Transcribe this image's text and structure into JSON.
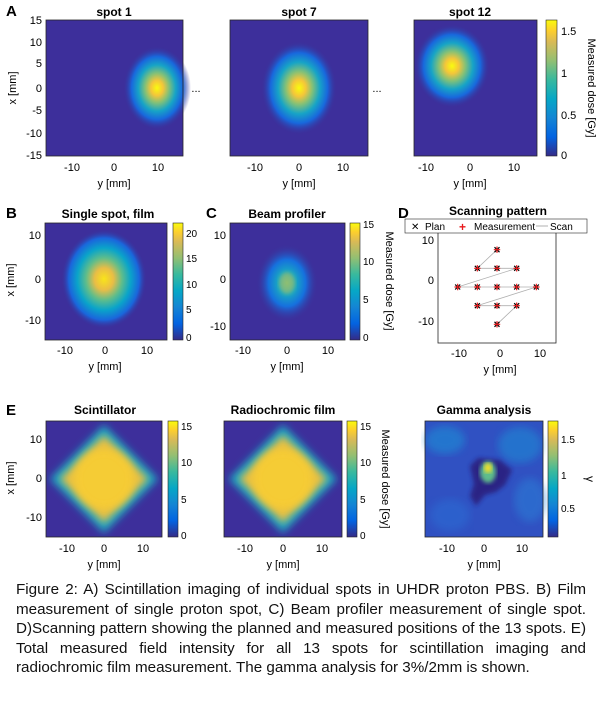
{
  "panel_letters": [
    "A",
    "B",
    "C",
    "D",
    "E"
  ],
  "colors": {
    "parula_stops": [
      "#352a87",
      "#0363e1",
      "#1485d4",
      "#06a7c6",
      "#38b99e",
      "#92bf73",
      "#d9ba56",
      "#fcce2e",
      "#f9fb0e"
    ],
    "plan_marker": "#000000",
    "measurement_marker": "#e8191c",
    "scan_line": "#b0b0b0"
  },
  "panels": {
    "A": {
      "spot1_title": "spot 1",
      "spot7_title": "spot 7",
      "spot12_title": "spot 12",
      "ellipsis": "...",
      "xlabel": "y [mm]",
      "ylabel": "x [mm]",
      "colorbar_label": "Measured dose [Gy]",
      "colorbar_ticks": [
        "1.5",
        "1",
        "0.5",
        "0"
      ],
      "y_ticks": [
        "15",
        "10",
        "5",
        "0",
        "-5",
        "-10",
        "-15"
      ],
      "x_ticks": [
        "-10",
        "0",
        "10"
      ]
    },
    "B": {
      "title": "Single spot, film",
      "xlabel": "y [mm]",
      "ylabel": "x [mm]",
      "y_ticks": [
        "10",
        "0",
        "-10"
      ],
      "x_ticks": [
        "-10",
        "0",
        "10"
      ],
      "colorbar_ticks": [
        "20",
        "15",
        "10",
        "5",
        "0"
      ]
    },
    "C": {
      "title": "Beam profiler",
      "xlabel": "y [mm]",
      "y_ticks": [
        "10",
        "0",
        "-10"
      ],
      "x_ticks": [
        "-10",
        "0",
        "10"
      ],
      "colorbar_label": "Measured dose [Gy]",
      "colorbar_ticks": [
        "15",
        "10",
        "5",
        "0"
      ]
    },
    "D": {
      "title": "Scanning pattern",
      "xlabel": "y [mm]",
      "y_ticks": [
        "10",
        "0",
        "-10"
      ],
      "x_ticks": [
        "-10",
        "0",
        "10"
      ],
      "legend": [
        "Plan",
        "Measurement",
        "Scan"
      ]
    },
    "E": {
      "scint_title": "Scintillator",
      "film_title": "Radiochromic film",
      "gamma_title": "Gamma analysis",
      "xlabel": "y [mm]",
      "ylabel": "x [mm]",
      "y_ticks": [
        "10",
        "0",
        "-10"
      ],
      "x_ticks": [
        "-10",
        "0",
        "10"
      ],
      "dose_colorbar_ticks": [
        "15",
        "10",
        "5",
        "0"
      ],
      "dose_colorbar_label": "Measured dose [Gy]",
      "gamma_colorbar_ticks": [
        "1.5",
        "1",
        "0.5"
      ],
      "gamma_colorbar_label": "γ"
    }
  },
  "chart_data": [
    {
      "type": "scatter",
      "title": "Scanning pattern",
      "xlabel": "y [mm]",
      "ylabel": "",
      "xlim": [
        -15,
        15
      ],
      "ylim": [
        -15,
        15
      ],
      "series": [
        {
          "name": "Plan",
          "marker": "x",
          "x": [
            0,
            -5,
            0,
            5,
            -10,
            -5,
            0,
            5,
            10,
            -5,
            0,
            5,
            0
          ],
          "y": [
            10,
            5,
            5,
            5,
            0,
            0,
            0,
            0,
            0,
            -5,
            -5,
            -5,
            -10
          ]
        },
        {
          "name": "Measurement",
          "marker": "+",
          "x": [
            0,
            -5,
            0,
            5,
            -10,
            -5,
            0,
            5,
            10,
            -5,
            0,
            5,
            0
          ],
          "y": [
            10,
            5,
            5,
            5,
            0,
            0,
            0,
            0,
            0,
            -5,
            -5,
            -5,
            -10
          ]
        }
      ]
    }
  ],
  "caption": "Figure 2: A) Scintillation imaging of individual spots in UHDR proton PBS. B) Film measurement of single proton spot, C) Beam profiler measurement of single spot. D)Scanning pattern showing the planned and measured positions of the 13 spots. E) Total measured field intensity for all 13 spots for scintillation imaging and radiochromic film measurement. The gamma analysis for 3%/2mm is shown."
}
